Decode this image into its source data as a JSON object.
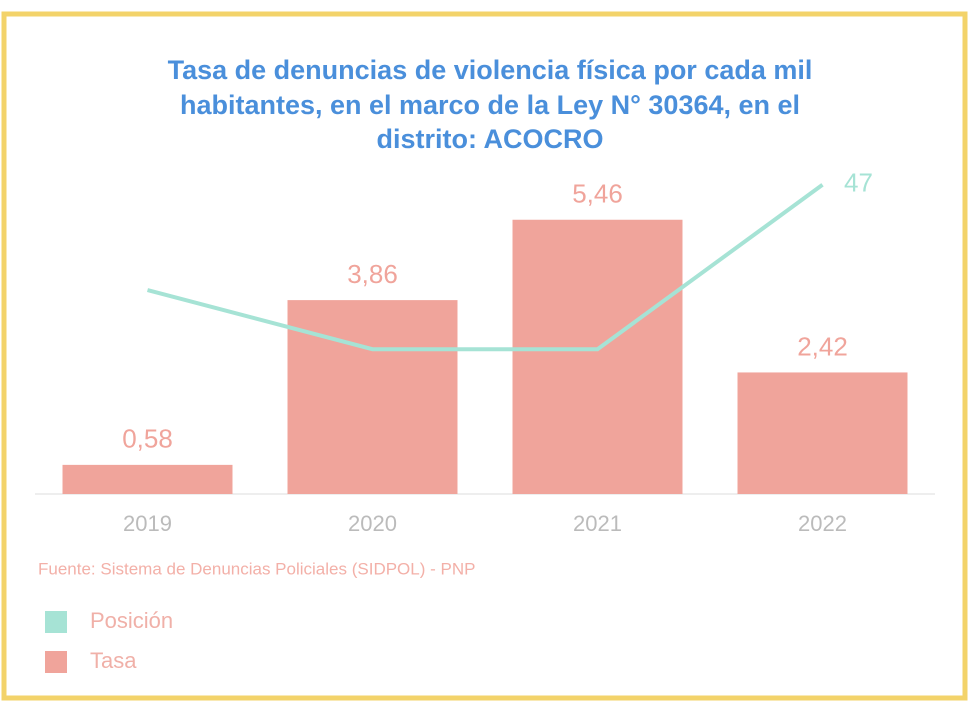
{
  "chart_data": {
    "type": "bar_line",
    "title": [
      "Tasa de denuncias de violencia física por cada mil",
      "habitantes, en el marco de la Ley N° 30364, en el",
      "distrito: ACOCRO"
    ],
    "categories": [
      "2019",
      "2020",
      "2021",
      "2022"
    ],
    "series": [
      {
        "name": "Posición",
        "type": "line",
        "axis": "y2",
        "color": "#a6e3d5",
        "values": [
          31,
          22,
          22,
          47
        ],
        "value_labels": [
          null,
          null,
          null,
          "47"
        ]
      },
      {
        "name": "Tasa",
        "type": "bar",
        "color": "#f0a49b",
        "values": [
          0.58,
          3.86,
          5.46,
          2.42
        ],
        "value_labels": [
          "0,58",
          "3,86",
          "5,46",
          "2,42"
        ]
      }
    ],
    "ylim": [
      0,
      6.55
    ],
    "y2lim": [
      0,
      50
    ],
    "source": "Fuente: Sistema de Denuncias Policiales (SIDPOL) - PNP",
    "legend": "bottom-left"
  }
}
